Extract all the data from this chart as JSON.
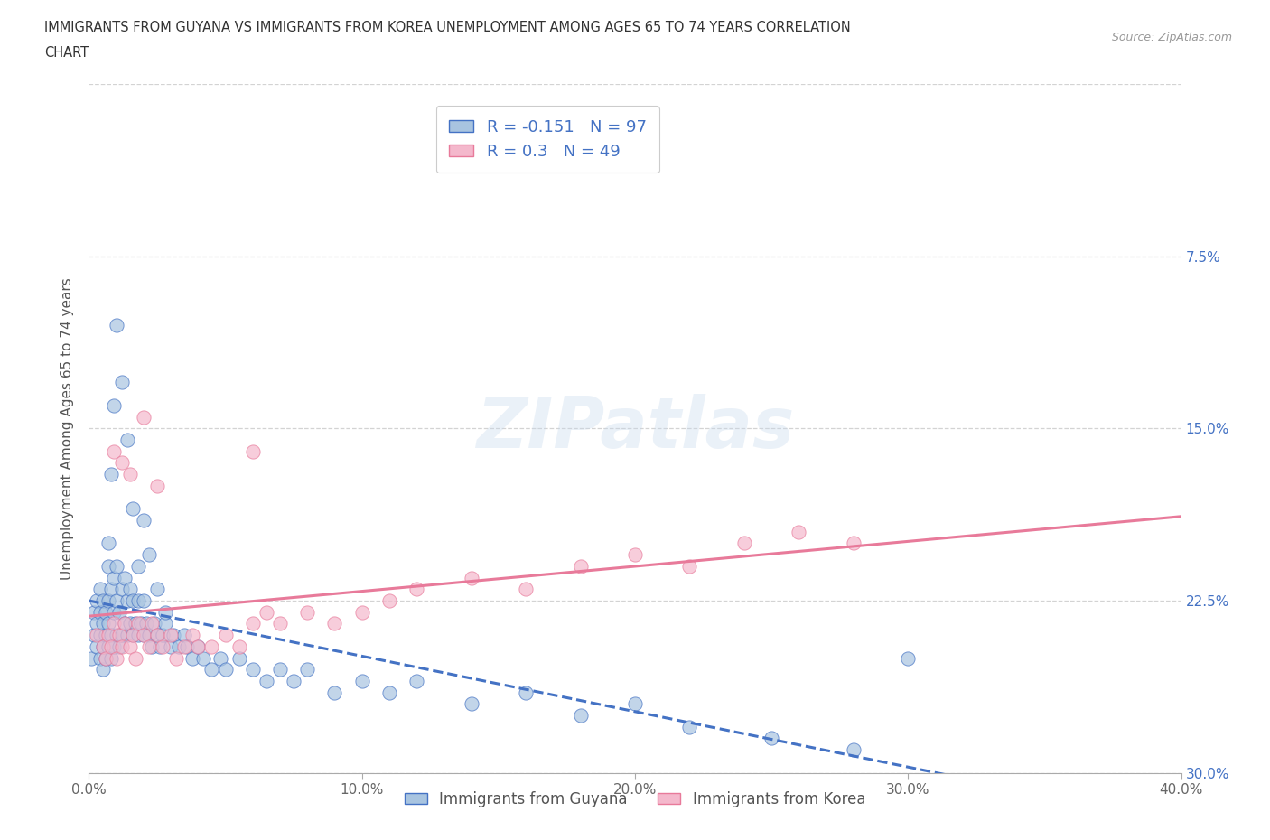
{
  "title_line1": "IMMIGRANTS FROM GUYANA VS IMMIGRANTS FROM KOREA UNEMPLOYMENT AMONG AGES 65 TO 74 YEARS CORRELATION",
  "title_line2": "CHART",
  "source": "Source: ZipAtlas.com",
  "ylabel": "Unemployment Among Ages 65 to 74 years",
  "xlim": [
    0.0,
    0.4
  ],
  "ylim": [
    0.0,
    0.3
  ],
  "xticks": [
    0.0,
    0.1,
    0.2,
    0.3,
    0.4
  ],
  "xticklabels": [
    "0.0%",
    "10.0%",
    "20.0%",
    "30.0%",
    "40.0%"
  ],
  "yticks": [
    0.0,
    0.075,
    0.15,
    0.225,
    0.3
  ],
  "yticklabels_right": [
    "30.0%",
    "22.5%",
    "15.0%",
    "7.5%",
    ""
  ],
  "guyana_color": "#a8c4e0",
  "korea_color": "#f4b8cc",
  "guyana_edge_color": "#4472c4",
  "korea_edge_color": "#e87a9a",
  "guyana_line_color": "#4472c4",
  "korea_line_color": "#e87a9a",
  "guyana_R": -0.151,
  "guyana_N": 97,
  "korea_R": 0.3,
  "korea_N": 49,
  "watermark": "ZIPatlas",
  "background_color": "#ffffff",
  "grid_color": "#c8c8c8",
  "guyana_x": [
    0.001,
    0.002,
    0.002,
    0.003,
    0.003,
    0.003,
    0.004,
    0.004,
    0.004,
    0.004,
    0.005,
    0.005,
    0.005,
    0.005,
    0.006,
    0.006,
    0.006,
    0.007,
    0.007,
    0.007,
    0.007,
    0.008,
    0.008,
    0.008,
    0.009,
    0.009,
    0.009,
    0.01,
    0.01,
    0.01,
    0.011,
    0.011,
    0.012,
    0.012,
    0.013,
    0.013,
    0.014,
    0.014,
    0.015,
    0.015,
    0.016,
    0.016,
    0.017,
    0.018,
    0.018,
    0.019,
    0.02,
    0.02,
    0.021,
    0.022,
    0.023,
    0.024,
    0.025,
    0.026,
    0.027,
    0.028,
    0.03,
    0.031,
    0.033,
    0.035,
    0.036,
    0.038,
    0.04,
    0.042,
    0.045,
    0.048,
    0.05,
    0.055,
    0.06,
    0.065,
    0.07,
    0.075,
    0.08,
    0.09,
    0.1,
    0.11,
    0.12,
    0.14,
    0.16,
    0.18,
    0.2,
    0.22,
    0.25,
    0.28,
    0.007,
    0.008,
    0.009,
    0.01,
    0.012,
    0.014,
    0.016,
    0.018,
    0.02,
    0.022,
    0.025,
    0.028,
    0.3
  ],
  "guyana_y": [
    0.05,
    0.06,
    0.07,
    0.055,
    0.065,
    0.075,
    0.05,
    0.06,
    0.07,
    0.08,
    0.045,
    0.055,
    0.065,
    0.075,
    0.05,
    0.06,
    0.07,
    0.055,
    0.065,
    0.075,
    0.09,
    0.05,
    0.06,
    0.08,
    0.055,
    0.07,
    0.085,
    0.06,
    0.075,
    0.09,
    0.055,
    0.07,
    0.06,
    0.08,
    0.065,
    0.085,
    0.06,
    0.075,
    0.065,
    0.08,
    0.06,
    0.075,
    0.065,
    0.06,
    0.075,
    0.065,
    0.06,
    0.075,
    0.065,
    0.06,
    0.055,
    0.065,
    0.06,
    0.055,
    0.06,
    0.065,
    0.055,
    0.06,
    0.055,
    0.06,
    0.055,
    0.05,
    0.055,
    0.05,
    0.045,
    0.05,
    0.045,
    0.05,
    0.045,
    0.04,
    0.045,
    0.04,
    0.045,
    0.035,
    0.04,
    0.035,
    0.04,
    0.03,
    0.035,
    0.025,
    0.03,
    0.02,
    0.015,
    0.01,
    0.1,
    0.13,
    0.16,
    0.195,
    0.17,
    0.145,
    0.115,
    0.09,
    0.11,
    0.095,
    0.08,
    0.07,
    0.05
  ],
  "korea_x": [
    0.003,
    0.005,
    0.006,
    0.007,
    0.008,
    0.009,
    0.01,
    0.011,
    0.012,
    0.013,
    0.015,
    0.016,
    0.017,
    0.018,
    0.02,
    0.022,
    0.023,
    0.025,
    0.027,
    0.03,
    0.032,
    0.035,
    0.038,
    0.04,
    0.045,
    0.05,
    0.055,
    0.06,
    0.065,
    0.07,
    0.08,
    0.09,
    0.1,
    0.11,
    0.12,
    0.14,
    0.16,
    0.18,
    0.2,
    0.22,
    0.24,
    0.26,
    0.28,
    0.009,
    0.012,
    0.015,
    0.02,
    0.025,
    0.06
  ],
  "korea_y": [
    0.06,
    0.055,
    0.05,
    0.06,
    0.055,
    0.065,
    0.05,
    0.06,
    0.055,
    0.065,
    0.055,
    0.06,
    0.05,
    0.065,
    0.06,
    0.055,
    0.065,
    0.06,
    0.055,
    0.06,
    0.05,
    0.055,
    0.06,
    0.055,
    0.055,
    0.06,
    0.055,
    0.065,
    0.07,
    0.065,
    0.07,
    0.065,
    0.07,
    0.075,
    0.08,
    0.085,
    0.08,
    0.09,
    0.095,
    0.09,
    0.1,
    0.105,
    0.1,
    0.14,
    0.135,
    0.13,
    0.155,
    0.125,
    0.14
  ]
}
